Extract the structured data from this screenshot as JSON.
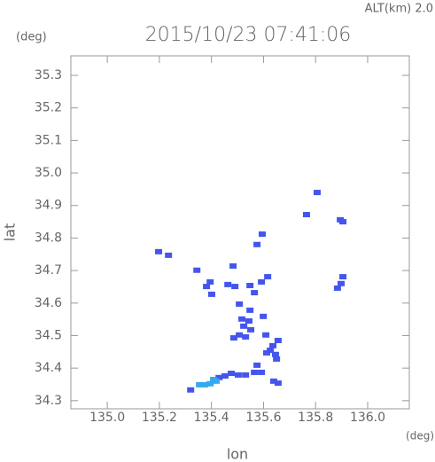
{
  "chart_data": {
    "type": "scatter",
    "title": "2015/10/23 07:41:06",
    "subtitle": "ALT(km) 2.0",
    "y_unit": "(deg)",
    "x_unit": "(deg)",
    "xlabel": "lon",
    "ylabel": "lat",
    "xlim": [
      134.86,
      136.16
    ],
    "ylim": [
      34.275,
      35.36
    ],
    "xticks": [
      {
        "value": 135,
        "label": "135.0"
      },
      135.2,
      135.4,
      135.6,
      135.8,
      {
        "value": 136,
        "label": "136.0"
      }
    ],
    "yticks": [
      34.3,
      34.4,
      34.5,
      34.6,
      34.7,
      34.8,
      34.9,
      {
        "value": 35,
        "label": "35.0"
      },
      35.1,
      35.2,
      35.3
    ],
    "series": [
      {
        "color": "#4455ee",
        "x": [
          135.806,
          135.765,
          135.895,
          135.905,
          135.595,
          135.575,
          135.197,
          135.235,
          135.344,
          135.483,
          135.905,
          135.898,
          135.884,
          135.381,
          135.395,
          135.463,
          135.49,
          135.548,
          135.592,
          135.616,
          135.565,
          135.507,
          135.548,
          135.517,
          135.544,
          135.599,
          135.524,
          135.551,
          135.507,
          135.486,
          135.531,
          135.609,
          135.656,
          135.636,
          135.612,
          135.626,
          135.646,
          135.65,
          135.656,
          135.639,
          135.575,
          135.592,
          135.565,
          135.531,
          135.503,
          135.476,
          135.452,
          135.429,
          135.32,
          135.401
        ],
        "y": [
          34.94,
          34.872,
          34.856,
          34.85,
          34.812,
          34.78,
          34.758,
          34.747,
          34.701,
          34.714,
          34.681,
          34.66,
          34.646,
          34.651,
          34.665,
          34.657,
          34.651,
          34.654,
          34.665,
          34.681,
          34.632,
          34.597,
          34.578,
          34.551,
          34.545,
          34.559,
          34.529,
          34.518,
          34.502,
          34.493,
          34.496,
          34.502,
          34.485,
          34.469,
          34.447,
          34.455,
          34.442,
          34.428,
          34.354,
          34.36,
          34.409,
          34.387,
          34.387,
          34.379,
          34.379,
          34.384,
          34.376,
          34.371,
          34.333,
          34.627
        ]
      },
      {
        "color": "#33aaee",
        "x": [
          135.408,
          135.395,
          135.418,
          135.374,
          135.354
        ],
        "y": [
          34.365,
          34.352,
          34.36,
          34.349,
          34.349
        ]
      }
    ]
  }
}
